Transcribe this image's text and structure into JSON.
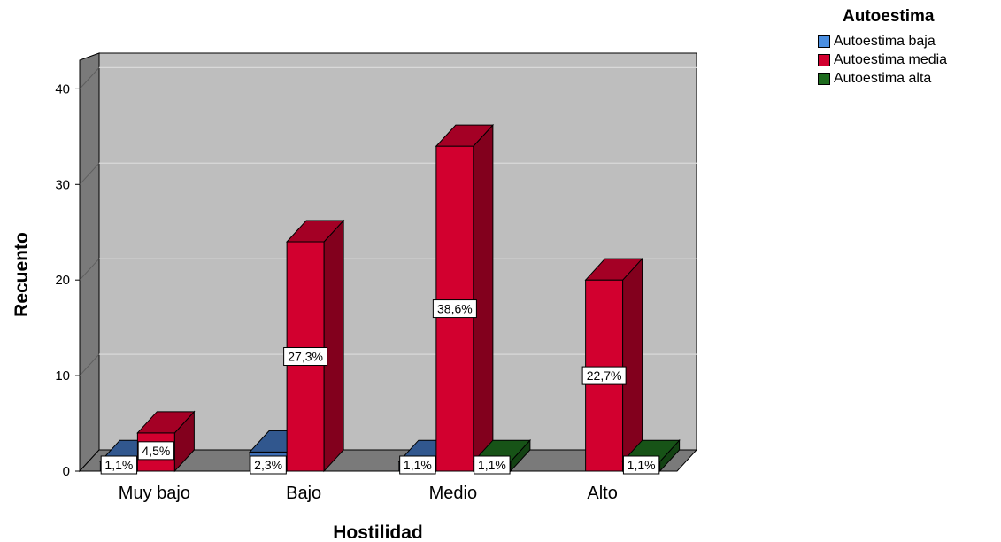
{
  "chart_data": {
    "type": "bar",
    "xlabel": "Hostilidad",
    "ylabel": "Recuento",
    "legend_title": "Autoestima",
    "categories": [
      "Muy bajo",
      "Bajo",
      "Medio",
      "Alto"
    ],
    "series": [
      {
        "name": "Autoestima baja",
        "values": [
          1,
          2,
          1,
          0
        ],
        "labels": [
          "1,1%",
          "2,3%",
          "1,1%",
          ""
        ],
        "color": "#3F6FB6"
      },
      {
        "name": "Autoestima media",
        "values": [
          4,
          24,
          34,
          20
        ],
        "labels": [
          "4,5%",
          "27,3%",
          "38,6%",
          "22,7%"
        ],
        "color": "#D2002F"
      },
      {
        "name": "Autoestima alta",
        "values": [
          0,
          0,
          1,
          1
        ],
        "labels": [
          "",
          "",
          "1,1%",
          "1,1%"
        ],
        "color": "#1E6B1E"
      }
    ],
    "yticks": [
      0,
      10,
      20,
      30,
      40
    ],
    "ylim": [
      0,
      43
    ],
    "grid": true,
    "legend_position": "top-right",
    "style": "3d-bar"
  },
  "colors": {
    "back_wall": "#BEBEBE",
    "side_wall": "#7A7A7A",
    "floor": "#7A7A7A",
    "gridline": "#D9D9D9",
    "baja_swatch": "#4A8EE0",
    "media_swatch": "#D2002F",
    "alta_swatch": "#1E6B1E"
  }
}
